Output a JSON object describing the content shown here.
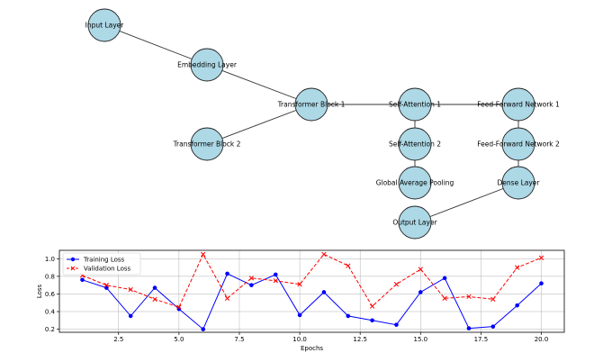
{
  "colors": {
    "node_fill": "#add8e6",
    "node_stroke": "#222222",
    "edge": "#333333",
    "training": "#0000ff",
    "validation": "#ff0000",
    "grid": "#b0b0b0"
  },
  "graph": {
    "nodes": [
      {
        "id": "input",
        "label": "Input Layer"
      },
      {
        "id": "embed",
        "label": "Embedding Layer"
      },
      {
        "id": "tb1",
        "label": "Transformer Block 1"
      },
      {
        "id": "tb2",
        "label": "Transformer Block 2"
      },
      {
        "id": "sa1",
        "label": "Self-Attention 1"
      },
      {
        "id": "sa2",
        "label": "Self-Attention 2"
      },
      {
        "id": "gap",
        "label": "Global Average Pooling"
      },
      {
        "id": "out",
        "label": "Output Layer"
      },
      {
        "id": "ffn1",
        "label": "Feed-Forward Network 1"
      },
      {
        "id": "ffn2",
        "label": "Feed-Forward Network 2"
      },
      {
        "id": "dense",
        "label": "Dense Layer"
      }
    ],
    "edges": [
      [
        "input",
        "embed"
      ],
      [
        "embed",
        "tb1"
      ],
      [
        "tb1",
        "tb2"
      ],
      [
        "tb1",
        "sa1"
      ],
      [
        "sa1",
        "ffn1"
      ],
      [
        "sa1",
        "sa2"
      ],
      [
        "sa2",
        "gap"
      ],
      [
        "ffn1",
        "ffn2"
      ],
      [
        "ffn2",
        "dense"
      ],
      [
        "dense",
        "out"
      ]
    ]
  },
  "chart_data": {
    "type": "line",
    "xlabel": "Epochs",
    "ylabel": "Loss",
    "xlim": [
      0.05,
      20.95
    ],
    "ylim": [
      0.165,
      1.095
    ],
    "x_ticks": [
      "2.5",
      "5.0",
      "7.5",
      "10.0",
      "12.5",
      "15.0",
      "17.5",
      "20.0"
    ],
    "x_tick_values": [
      2.5,
      5.0,
      7.5,
      10.0,
      12.5,
      15.0,
      17.5,
      20.0
    ],
    "y_ticks": [
      "0.2",
      "0.4",
      "0.6",
      "0.8",
      "1.0"
    ],
    "y_tick_values": [
      0.2,
      0.4,
      0.6,
      0.8,
      1.0
    ],
    "grid": true,
    "legend_position": "top-left",
    "x": [
      1,
      2,
      3,
      4,
      5,
      6,
      7,
      8,
      9,
      10,
      11,
      12,
      13,
      14,
      15,
      16,
      17,
      18,
      19,
      20
    ],
    "series": [
      {
        "name": "Training Loss",
        "style": "solid",
        "marker": "circle",
        "values": [
          0.76,
          0.67,
          0.35,
          0.67,
          0.43,
          0.2,
          0.83,
          0.7,
          0.82,
          0.36,
          0.62,
          0.35,
          0.3,
          0.25,
          0.62,
          0.78,
          0.21,
          0.23,
          0.47,
          0.72
        ]
      },
      {
        "name": "Validation Loss",
        "style": "dashed",
        "marker": "x",
        "values": [
          0.81,
          0.7,
          0.65,
          0.54,
          0.45,
          1.05,
          0.55,
          0.78,
          0.75,
          0.71,
          1.05,
          0.92,
          0.46,
          0.71,
          0.88,
          0.55,
          0.57,
          0.54,
          0.9,
          1.01
        ]
      }
    ]
  }
}
